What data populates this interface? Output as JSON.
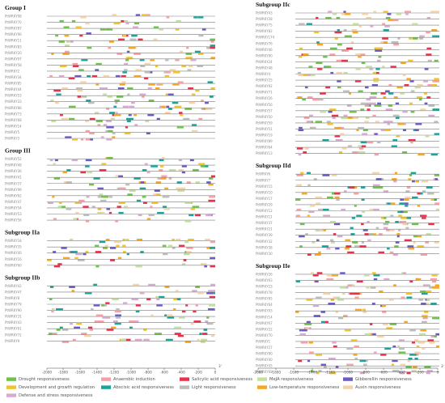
{
  "colors": {
    "drought": "#6cc24a",
    "development": "#f2c12e",
    "defense": "#d7a9d3",
    "anaerobic": "#f4a0a6",
    "abscisic": "#1aa39a",
    "light": "#bdbdbd",
    "salicylic": "#e8314a",
    "lowtemp": "#f5a623",
    "meja": "#c5dfa3",
    "gibberellin": "#6b5bc2",
    "auxin": "#f6d2a8"
  },
  "panels": {
    "left": {
      "groups": [
        {
          "title": "Group I",
          "genes": [
            "PtWRKY98",
            "PtWRKY70",
            "PtWRKY87",
            "PtWRKY96",
            "PtWRKY11",
            "PtWRKY83",
            "PtWRKY20",
            "PtWRKY97",
            "PtWRKY58",
            "PtWRKY2",
            "PtWRKY34",
            "PtWRKY85",
            "PtWRKY44",
            "PtWRKY53",
            "PtWRKY33",
            "PtWRKY86",
            "PtWRKY73",
            "PtWRKY68",
            "PtWRKY14",
            "PtWRKY5",
            "PtWRKY3"
          ]
        },
        {
          "title": "Group III",
          "genes": [
            "PtWRKY52",
            "PtWRKY48",
            "PtWRKY36",
            "PtWRKY41",
            "PtWRKY37",
            "PtWRKY99",
            "PtWRKY62",
            "PtWRKY47",
            "PtWRKY54",
            "PtWRKY53",
            "PtWRKY56"
          ]
        },
        {
          "title": "Subgroup IIa",
          "genes": [
            "PtWRKY18",
            "PtWRKY35",
            "PtWRKY40",
            "PtWRKY16",
            "PtWRKY60"
          ]
        },
        {
          "title": "Subgroup IIb",
          "genes": [
            "PtWRKY42",
            "PtWRKY47",
            "PtWRKY8",
            "PtWRKY79",
            "PtWRKY90",
            "PtWRKY31",
            "PtWRKY43",
            "PtWRKY61",
            "PtWRKY72",
            "PtWRKY9"
          ]
        }
      ],
      "axis_ticks": [
        "-2000",
        "-1800",
        "-1600",
        "-1400",
        "-1200",
        "-1000",
        "-800",
        "-600",
        "-400",
        "-200",
        "0"
      ],
      "axis_end": "3'"
    },
    "right": {
      "groups": [
        {
          "title": "Subgroup IIc",
          "genes": [
            "PtWRKY43",
            "PtWRKY28",
            "PtWRKY75",
            "PtWRKY82",
            "PtWRKY174",
            "PtWRKY76",
            "PtWRKY46",
            "PtWRKY90",
            "PtWRKY24",
            "PtWRKY48",
            "PtWRKY4",
            "PtWRKY25",
            "PtWRKY92",
            "PtWRKY71",
            "PtWRKY26",
            "PtWRKY56",
            "PtWRKY57",
            "PtWRKY50",
            "PtWRKY59",
            "PtWRKY51",
            "PtWRKY19",
            "PtWRKY89",
            "PtWRKY64",
            "PtWRKY13"
          ]
        },
        {
          "title": "Subgroup IId",
          "genes": [
            "PtWRKY6",
            "PtWRKY7",
            "PtWRKY15",
            "PtWRKY10",
            "PtWRKY17",
            "PtWRKY29",
            "PtWRKY12",
            "PtWRKY11",
            "PtWRKY37",
            "PtWRKY21",
            "PtWRKY39",
            "PtWRKY32",
            "PtWRKY38",
            "PtWRKY30"
          ]
        },
        {
          "title": "Subgroup IIe",
          "genes": [
            "PtWRKY26",
            "PtWRKY63",
            "PtWRKY23",
            "PtWRKY78",
            "PtWRKY65",
            "PtWRKY64",
            "PtWRKY93",
            "PtWRKY14",
            "PtWRKY67",
            "PtWRKY22",
            "PtWRKY70",
            "PtWRKY1",
            "PtWRKY27",
            "PtWRKY80",
            "PtWRKY40",
            "PtWRKY45",
            "PtWRKY69"
          ]
        }
      ],
      "axis_ticks": [
        "-2000",
        "-1800",
        "-1600",
        "-1400",
        "-1200",
        "-1000",
        "-800",
        "-600",
        "-400",
        "-200",
        "0"
      ],
      "axis_end": "3'"
    }
  },
  "legend": [
    {
      "label": "Drought responsiveness",
      "color_key": "drought"
    },
    {
      "label": "Anaerobic induction",
      "color_key": "anaerobic"
    },
    {
      "label": "Salicylic acid responsiveness",
      "color_key": "salicylic"
    },
    {
      "label": "MeJA responsiveness",
      "color_key": "meja"
    },
    {
      "label": "Gibberellin responsiveness",
      "color_key": "gibberellin"
    },
    {
      "label": "Development and growth regulation",
      "color_key": "development"
    },
    {
      "label": "Abscisic acid responsiveness",
      "color_key": "abscisic"
    },
    {
      "label": "Light responsiveness",
      "color_key": "light"
    },
    {
      "label": "Low-temperature responsiveness",
      "color_key": "lowtemp"
    },
    {
      "label": "Auxin responsiveness",
      "color_key": "auxin"
    },
    {
      "label": "Defense and stress responsiveness",
      "color_key": "defense"
    }
  ]
}
